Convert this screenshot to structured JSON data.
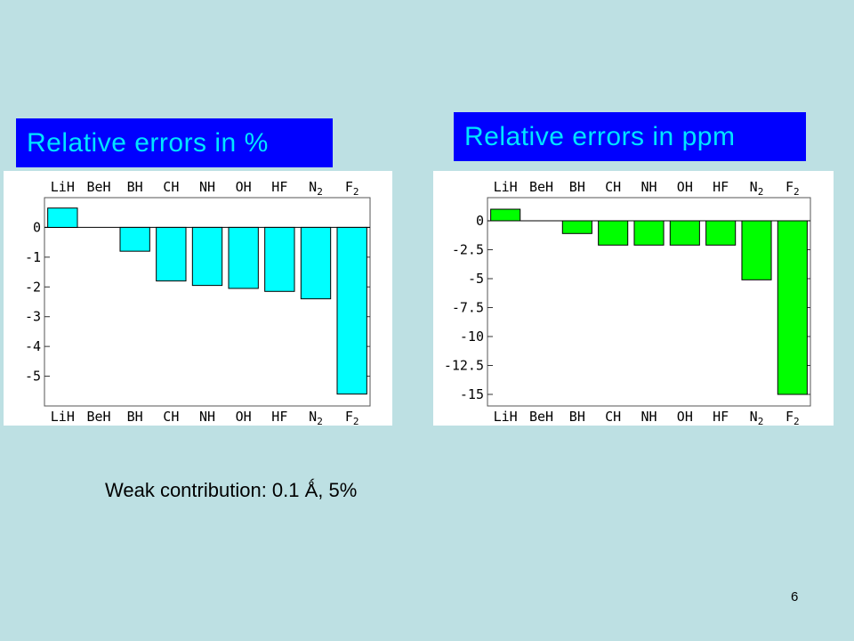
{
  "slide": {
    "caption": "Weak contribution: 0.1 Ǻ,  5%",
    "page_number": "6"
  },
  "colors": {
    "background": "#bde0e3",
    "label_bg": "#0000ff",
    "label_text": "#00e5ff",
    "bar_left": "#00ffff",
    "bar_right": "#00ff00"
  },
  "chart_data": [
    {
      "type": "bar",
      "title": "Relative errors in %",
      "categories": [
        "LiH",
        "BeH",
        "BH",
        "CH",
        "NH",
        "OH",
        "HF",
        "N2",
        "F2"
      ],
      "category_labels": [
        {
          "main": "LiH",
          "sub": ""
        },
        {
          "main": "BeH",
          "sub": ""
        },
        {
          "main": "BH",
          "sub": ""
        },
        {
          "main": "CH",
          "sub": ""
        },
        {
          "main": "NH",
          "sub": ""
        },
        {
          "main": "OH",
          "sub": ""
        },
        {
          "main": "HF",
          "sub": ""
        },
        {
          "main": "N",
          "sub": "2"
        },
        {
          "main": "F",
          "sub": "2"
        }
      ],
      "values": [
        0.65,
        0,
        -0.8,
        -1.8,
        -1.95,
        -2.05,
        -2.15,
        -2.4,
        -5.6
      ],
      "ylim": [
        -6,
        1
      ],
      "yticks": [
        0,
        -1,
        -2,
        -3,
        -4,
        -5
      ],
      "ytick_labels": [
        "0",
        "-1",
        "-2",
        "-3",
        "-4",
        "-5"
      ],
      "grid": false
    },
    {
      "type": "bar",
      "title": "Relative errors in ppm",
      "categories": [
        "LiH",
        "BeH",
        "BH",
        "CH",
        "NH",
        "OH",
        "HF",
        "N2",
        "F2"
      ],
      "category_labels": [
        {
          "main": "LiH",
          "sub": ""
        },
        {
          "main": "BeH",
          "sub": ""
        },
        {
          "main": "BH",
          "sub": ""
        },
        {
          "main": "CH",
          "sub": ""
        },
        {
          "main": "NH",
          "sub": ""
        },
        {
          "main": "OH",
          "sub": ""
        },
        {
          "main": "HF",
          "sub": ""
        },
        {
          "main": "N",
          "sub": "2"
        },
        {
          "main": "F",
          "sub": "2"
        }
      ],
      "values": [
        1.0,
        0,
        -1.1,
        -2.1,
        -2.1,
        -2.1,
        -2.1,
        -5.1,
        -15.0
      ],
      "ylim": [
        -16,
        2
      ],
      "yticks": [
        0,
        -2.5,
        -5,
        -7.5,
        -10,
        -12.5,
        -15
      ],
      "ytick_labels": [
        "0",
        "-2.5",
        "-5",
        "-7.5",
        "-10",
        "-12.5",
        "-15"
      ],
      "grid": false
    }
  ]
}
